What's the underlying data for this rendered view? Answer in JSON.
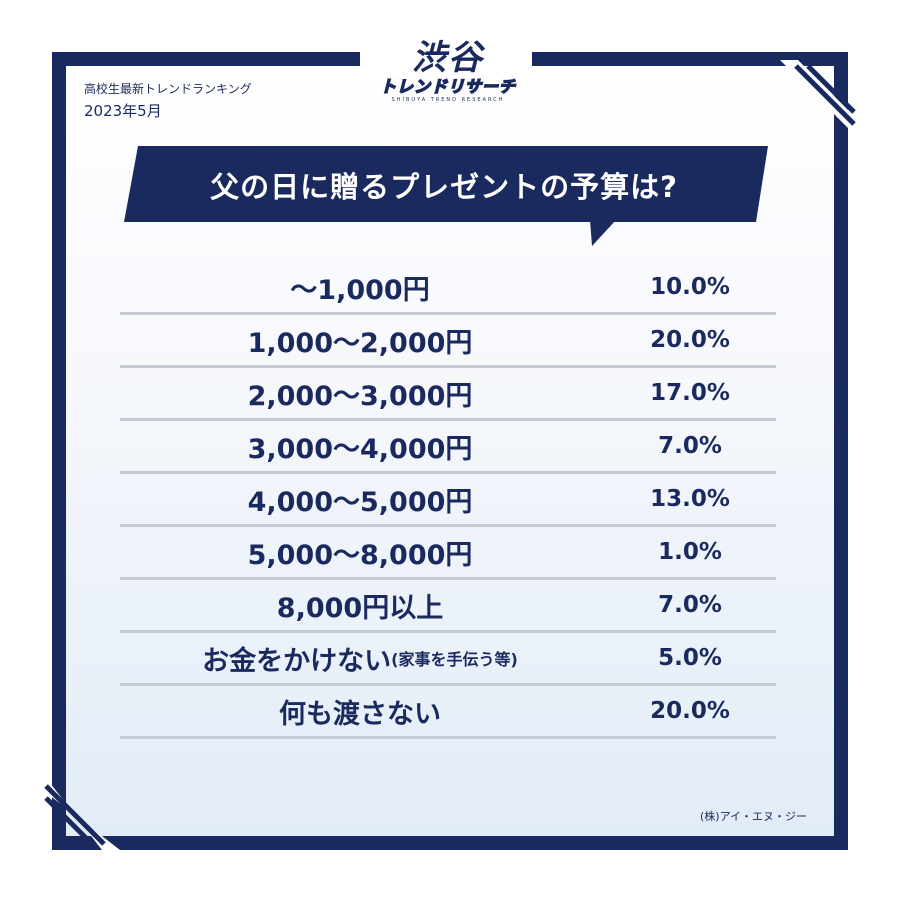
{
  "header": {
    "subtitle": "高校生最新トレンドランキング",
    "month": "2023年5月"
  },
  "logo": {
    "main": "渋谷",
    "sub": "トレンドリサーチ",
    "en": "SHIBUYA TREND RESEARCH"
  },
  "title": "父の日に贈るプレゼントの予算は?",
  "rows": [
    {
      "label": "〜1,000円",
      "note": "",
      "value": "10.0%"
    },
    {
      "label": "1,000〜2,000円",
      "note": "",
      "value": "20.0%"
    },
    {
      "label": "2,000〜3,000円",
      "note": "",
      "value": "17.0%"
    },
    {
      "label": "3,000〜4,000円",
      "note": "",
      "value": "7.0%"
    },
    {
      "label": "4,000〜5,000円",
      "note": "",
      "value": "13.0%"
    },
    {
      "label": "5,000〜8,000円",
      "note": "",
      "value": "1.0%"
    },
    {
      "label": "8,000円以上",
      "note": "",
      "value": "7.0%"
    },
    {
      "label": "お金をかけない",
      "note": "(家事を手伝う等)",
      "value": "5.0%"
    },
    {
      "label": "何も渡さない",
      "note": "",
      "value": "20.0%"
    }
  ],
  "credit": "(株)アイ・エヌ・ジー",
  "colors": {
    "navy": "#1b2a5e",
    "divider": "#c4c9d4"
  }
}
